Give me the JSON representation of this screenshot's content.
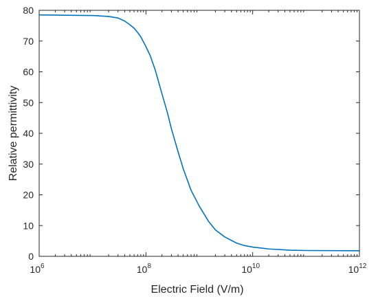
{
  "chart_data": {
    "type": "line",
    "title": "",
    "xlabel": "Electric Field (V/m)",
    "ylabel": "Relative permittivity",
    "xscale": "log",
    "xlim": [
      1000000.0,
      1000000000000.0
    ],
    "ylim": [
      0,
      80
    ],
    "grid": false,
    "legend": "none",
    "x_ticks": [
      {
        "value": 1000000.0,
        "base": "10",
        "exp": "6"
      },
      {
        "value": 100000000.0,
        "base": "10",
        "exp": "8"
      },
      {
        "value": 10000000000.0,
        "base": "10",
        "exp": "10"
      },
      {
        "value": 1000000000000.0,
        "base": "10",
        "exp": "12"
      }
    ],
    "y_ticks": [
      0,
      10,
      20,
      30,
      40,
      50,
      60,
      70,
      80
    ],
    "series": [
      {
        "color": "#0072bd",
        "x": [
          1000000.0,
          10000000.0,
          20000000.0,
          30000000.0,
          40000000.0,
          50000000.0,
          60000000.0,
          70000000.0,
          80000000.0,
          100000000.0,
          120000000.0,
          150000000.0,
          200000000.0,
          250000000.0,
          300000000.0,
          400000000.0,
          500000000.0,
          700000000.0,
          1000000000.0,
          1500000000.0,
          2000000000.0,
          3000000000.0,
          5000000000.0,
          7000000000.0,
          10000000000.0,
          20000000000.0,
          50000000000.0,
          100000000000.0,
          1000000000000.0
        ],
        "y": [
          78.5,
          78.3,
          78.0,
          77.5,
          76.5,
          75.3,
          74.2,
          72.8,
          71.4,
          68.2,
          65.3,
          60.5,
          52.8,
          47.0,
          41.5,
          34.0,
          28.5,
          21.5,
          16.3,
          11.3,
          8.6,
          6.3,
          4.3,
          3.5,
          3.0,
          2.4,
          2.0,
          1.9,
          1.8
        ]
      }
    ]
  }
}
